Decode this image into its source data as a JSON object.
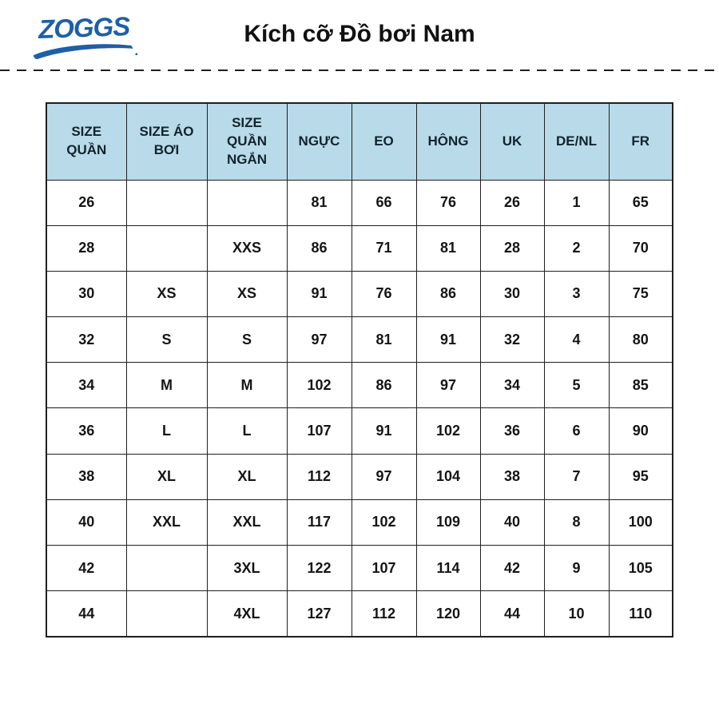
{
  "page": {
    "logo_text": "ZOGGS",
    "title": "Kích cỡ Đồ bơi Nam"
  },
  "colors": {
    "logo_blue": "#1d5fa8",
    "header_bg": "#b9dbe9",
    "border": "#1f1f1f",
    "text": "#141414"
  },
  "chart_data": {
    "type": "table",
    "title": "Kích cỡ Đồ bơi Nam",
    "headers": [
      "SIZE QUẦN",
      "SIZE ÁO BƠI",
      "SIZE QUẦN NGẮN",
      "NGỰC",
      "EO",
      "HÔNG",
      "UK",
      "DE/NL",
      "FR"
    ],
    "rows": [
      [
        "26",
        "",
        "",
        "81",
        "66",
        "76",
        "26",
        "1",
        "65"
      ],
      [
        "28",
        "",
        "XXS",
        "86",
        "71",
        "81",
        "28",
        "2",
        "70"
      ],
      [
        "30",
        "XS",
        "XS",
        "91",
        "76",
        "86",
        "30",
        "3",
        "75"
      ],
      [
        "32",
        "S",
        "S",
        "97",
        "81",
        "91",
        "32",
        "4",
        "80"
      ],
      [
        "34",
        "M",
        "M",
        "102",
        "86",
        "97",
        "34",
        "5",
        "85"
      ],
      [
        "36",
        "L",
        "L",
        "107",
        "91",
        "102",
        "36",
        "6",
        "90"
      ],
      [
        "38",
        "XL",
        "XL",
        "112",
        "97",
        "104",
        "38",
        "7",
        "95"
      ],
      [
        "40",
        "XXL",
        "XXL",
        "117",
        "102",
        "109",
        "40",
        "8",
        "100"
      ],
      [
        "42",
        "",
        "3XL",
        "122",
        "107",
        "114",
        "42",
        "9",
        "105"
      ],
      [
        "44",
        "",
        "4XL",
        "127",
        "112",
        "120",
        "44",
        "10",
        "110"
      ]
    ]
  }
}
